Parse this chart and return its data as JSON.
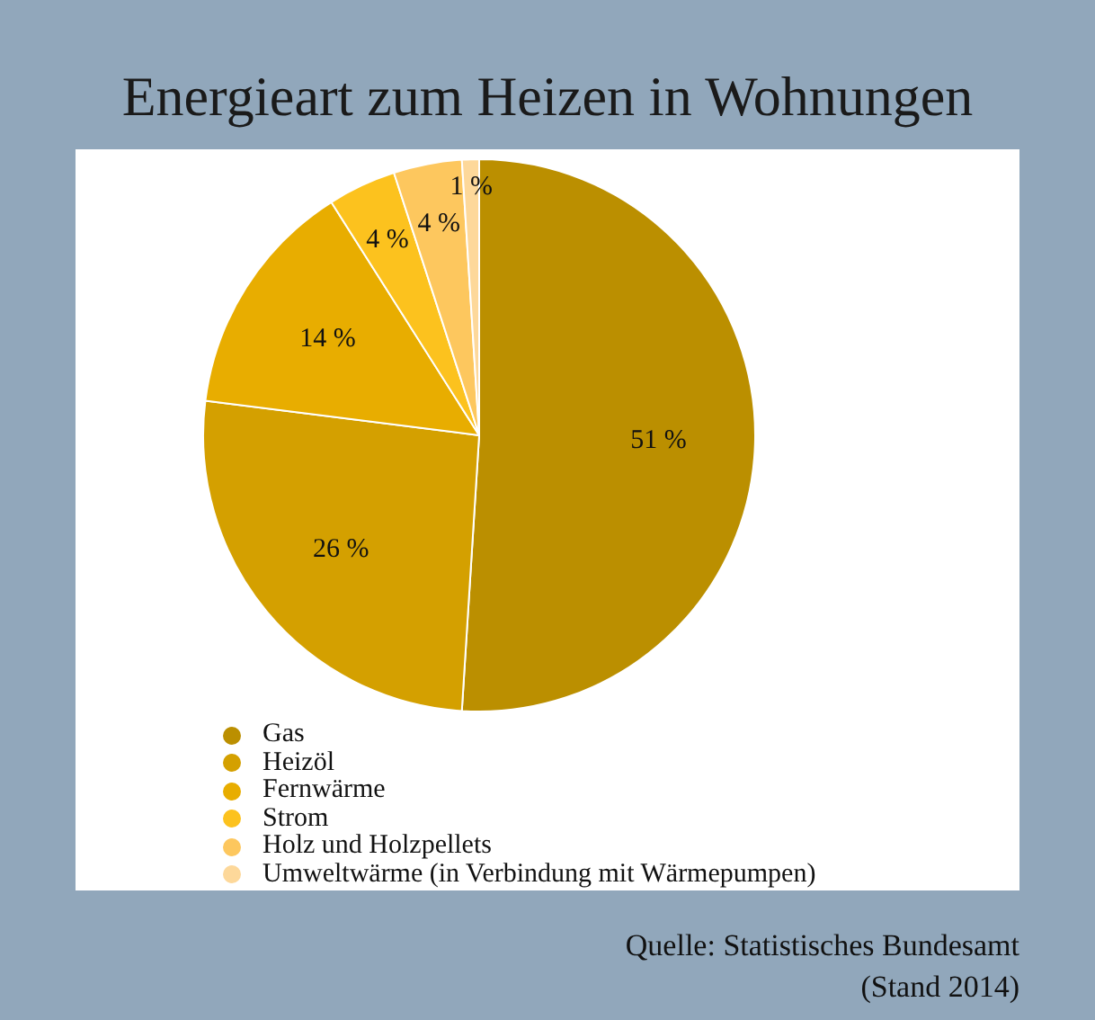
{
  "chart_data": {
    "type": "pie",
    "title": "Energieart zum Heizen in Wohnungen",
    "categories": [
      "Gas",
      "Heizöl",
      "Fernwärme",
      "Strom",
      "Holz und Holzpellets",
      "Umweltwärme (in Verbindung mit Wärmepumpen)"
    ],
    "values": [
      51,
      26,
      14,
      4,
      4,
      1
    ],
    "colors": [
      "#bb8f00",
      "#d4a000",
      "#e8ad00",
      "#fcc21e",
      "#fdc75e",
      "#fdd89a"
    ],
    "value_labels": [
      "51 %",
      "26 %",
      "14 %",
      "4 %",
      "4 %",
      "1 %"
    ],
    "legend": "bottom",
    "annotations": [
      "Quelle: Statistisches Bundesamt",
      "(Stand 2014)"
    ]
  }
}
